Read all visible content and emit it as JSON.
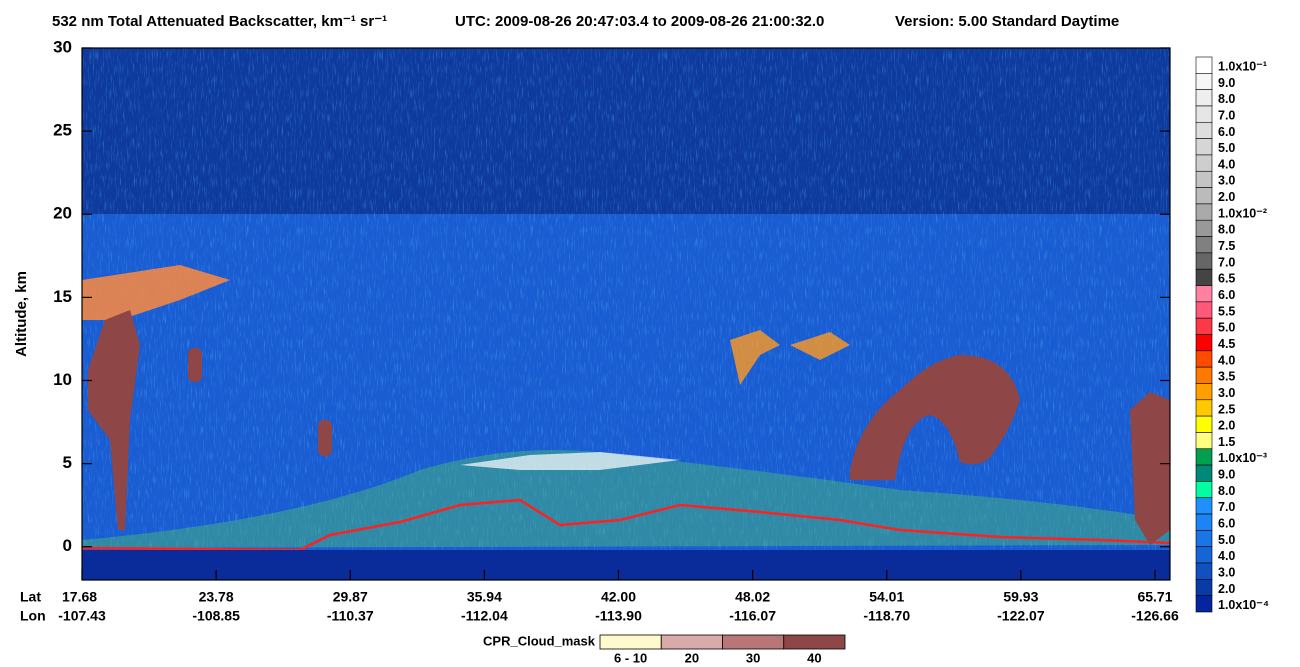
{
  "chart_data": {
    "type": "heatmap",
    "title": "532 nm Total Attenuated Backscatter, km⁻¹ sr⁻¹",
    "utc": "UTC:  2009-08-26 20:47:03.4  to  2009-08-26 21:00:32.0",
    "version": "Version: 5.00  Standard  Daytime",
    "ylabel": "Altitude, km",
    "ylim": [
      -2,
      30
    ],
    "yticks": [
      0,
      5,
      10,
      15,
      20,
      25,
      30
    ],
    "lat_label": "Lat",
    "lon_label": "Lon",
    "lat": [
      "17.68",
      "23.78",
      "29.87",
      "35.94",
      "42.00",
      "48.02",
      "54.01",
      "59.93",
      "65.71"
    ],
    "lon": [
      "-107.43",
      "-108.85",
      "-110.37",
      "-112.04",
      "-113.90",
      "-116.07",
      "-118.70",
      "-122.07",
      "-126.66"
    ],
    "colorbar": [
      {
        "label": "1.0x10⁻¹",
        "color": "#ffffff"
      },
      {
        "label": "9.0",
        "color": "#f6f6f6"
      },
      {
        "label": "8.0",
        "color": "#eeeeee"
      },
      {
        "label": "7.0",
        "color": "#e6e6e6"
      },
      {
        "label": "6.0",
        "color": "#dedede"
      },
      {
        "label": "5.0",
        "color": "#d6d6d6"
      },
      {
        "label": "4.0",
        "color": "#cecece"
      },
      {
        "label": "3.0",
        "color": "#c4c4c4"
      },
      {
        "label": "2.0",
        "color": "#bbbbbb"
      },
      {
        "label": "1.0x10⁻²",
        "color": "#aaaaaa"
      },
      {
        "label": "8.0",
        "color": "#999999"
      },
      {
        "label": "7.5",
        "color": "#808080"
      },
      {
        "label": "7.0",
        "color": "#666666"
      },
      {
        "label": "6.5",
        "color": "#444444"
      },
      {
        "label": "6.0",
        "color": "#ff80a0"
      },
      {
        "label": "5.5",
        "color": "#ff5878"
      },
      {
        "label": "5.0",
        "color": "#ff3848"
      },
      {
        "label": "4.5",
        "color": "#ff0000"
      },
      {
        "label": "4.0",
        "color": "#ff4a00"
      },
      {
        "label": "3.5",
        "color": "#ff7800"
      },
      {
        "label": "3.0",
        "color": "#ffa000"
      },
      {
        "label": "2.5",
        "color": "#ffc800"
      },
      {
        "label": "2.0",
        "color": "#ffff00"
      },
      {
        "label": "1.5",
        "color": "#ffff80"
      },
      {
        "label": "1.0x10⁻³",
        "color": "#00a050"
      },
      {
        "label": "9.0",
        "color": "#008878"
      },
      {
        "label": "8.0",
        "color": "#00ffa0"
      },
      {
        "label": "7.0",
        "color": "#2090ff"
      },
      {
        "label": "6.0",
        "color": "#1c84f4"
      },
      {
        "label": "5.0",
        "color": "#1876e6"
      },
      {
        "label": "4.0",
        "color": "#1466d8"
      },
      {
        "label": "3.0",
        "color": "#1050c0"
      },
      {
        "label": "2.0",
        "color": "#0a3aa8"
      },
      {
        "label": "1.0x10⁻⁴",
        "color": "#0624a0"
      }
    ],
    "cloud_mask_title": "CPR_Cloud_mask",
    "cloud_mask": [
      {
        "label": "6 - 10",
        "color": "#fffacd"
      },
      {
        "label": "20",
        "color": "#d8aaaa"
      },
      {
        "label": "30",
        "color": "#b87676"
      },
      {
        "label": "40",
        "color": "#8e4646"
      }
    ]
  }
}
